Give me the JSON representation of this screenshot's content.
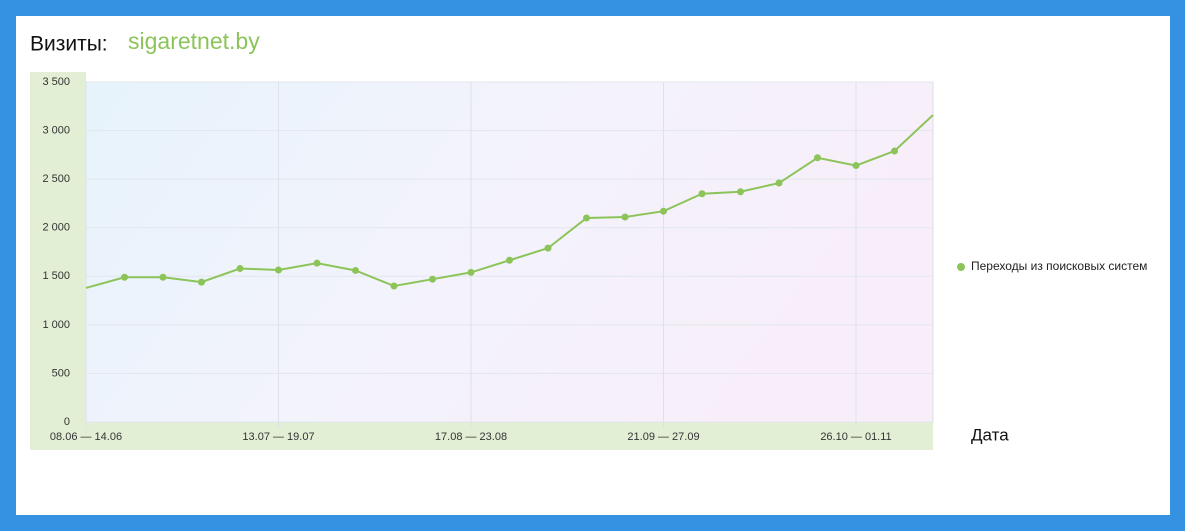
{
  "chart_data": {
    "type": "line",
    "title": "Визиты:",
    "subtitle": "sigaretnet.by",
    "x_label": "Дата",
    "categories": [
      "08.06 — 14.06",
      null,
      null,
      null,
      null,
      "13.07 — 19.07",
      null,
      null,
      null,
      null,
      "17.08 — 23.08",
      null,
      null,
      null,
      null,
      "21.09 — 27.09",
      null,
      null,
      null,
      null,
      "26.10 — 01.11",
      null,
      null
    ],
    "series": [
      {
        "name": "Переходы из поисковых систем",
        "color": "#8cc45a",
        "values": [
          1380,
          1490,
          1490,
          1440,
          1580,
          1565,
          1635,
          1560,
          1400,
          1470,
          1540,
          1665,
          1790,
          2100,
          2110,
          2170,
          2350,
          2370,
          2460,
          2720,
          2640,
          2790,
          3160
        ]
      }
    ],
    "ylim": [
      0,
      3500
    ],
    "yticks": [
      0,
      500,
      {
        "value": 1000,
        "label": "1 000"
      },
      {
        "value": 1500,
        "label": "1 500"
      },
      {
        "value": 2000,
        "label": "2 000"
      },
      {
        "value": 2500,
        "label": "2 500"
      },
      {
        "value": 3000,
        "label": "3 000"
      },
      {
        "value": 3500,
        "label": "3 500"
      }
    ],
    "grid": true,
    "legend": "right"
  }
}
